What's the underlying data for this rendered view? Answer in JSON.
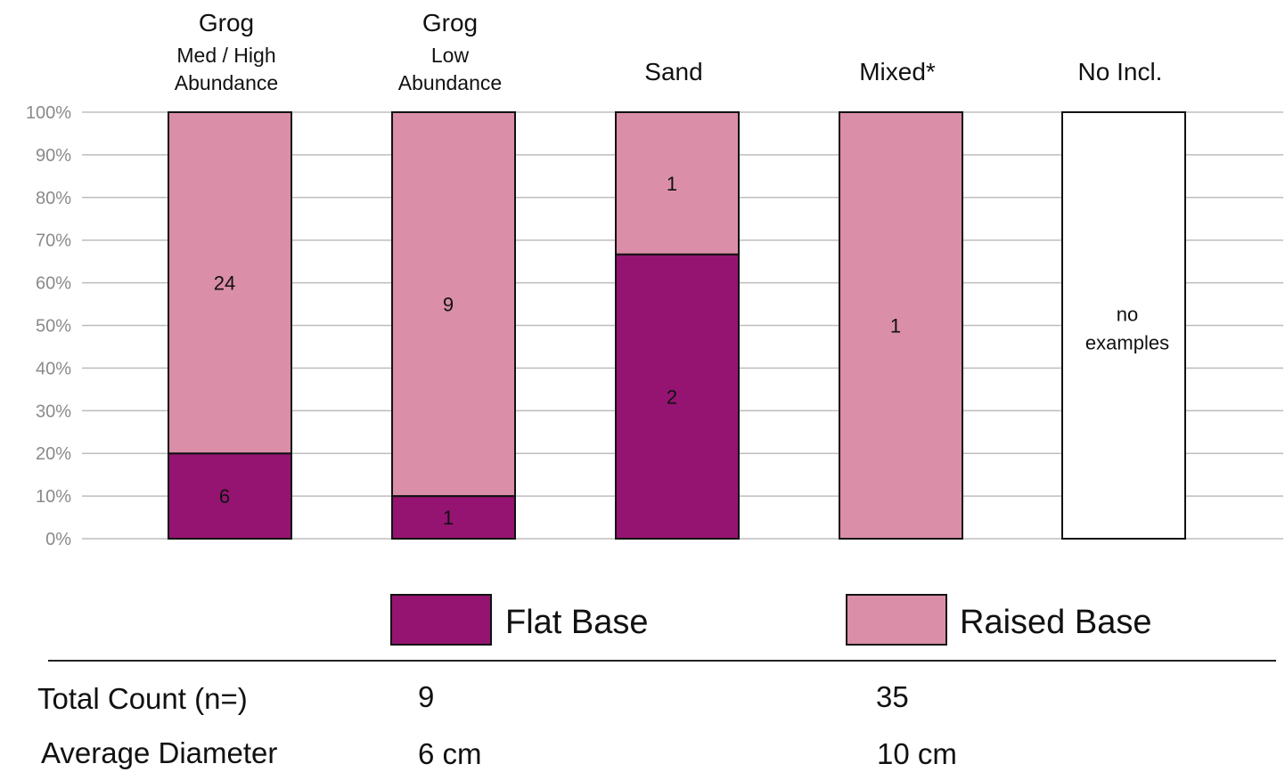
{
  "chart_data": {
    "type": "bar",
    "stacked": true,
    "normalized_percent": true,
    "categories": [
      {
        "title": "Grog",
        "subtitle": [
          "Med / High",
          "Abundance"
        ]
      },
      {
        "title": "Grog",
        "subtitle": [
          "Low",
          "Abundance"
        ]
      },
      {
        "title": "Sand",
        "subtitle": []
      },
      {
        "title": "Mixed*",
        "subtitle": []
      },
      {
        "title": "No Incl.",
        "subtitle": []
      }
    ],
    "series": [
      {
        "name": "Flat Base",
        "color": "#951471",
        "values": [
          6,
          1,
          2,
          0,
          0
        ],
        "labels": [
          "6",
          "1",
          "2",
          "",
          ""
        ]
      },
      {
        "name": "Raised Base",
        "color": "#db8ea8",
        "values": [
          24,
          9,
          1,
          1,
          0
        ],
        "labels": [
          "24",
          "9",
          "1",
          "1",
          ""
        ]
      }
    ],
    "empty_note": [
      "no",
      "examples"
    ],
    "y_ticks": [
      "0%",
      "10%",
      "20%",
      "30%",
      "40%",
      "50%",
      "60%",
      "70%",
      "80%",
      "90%",
      "100%"
    ],
    "ylim": [
      0,
      100
    ],
    "grid": true,
    "legend_placement": "bottom"
  },
  "summary": {
    "total_count_label": "Total Count (n=)",
    "average_diameter_label": "Average Diameter",
    "flat_total": "9",
    "raised_total": "35",
    "flat_diameter": "6 cm",
    "raised_diameter": "10 cm"
  }
}
